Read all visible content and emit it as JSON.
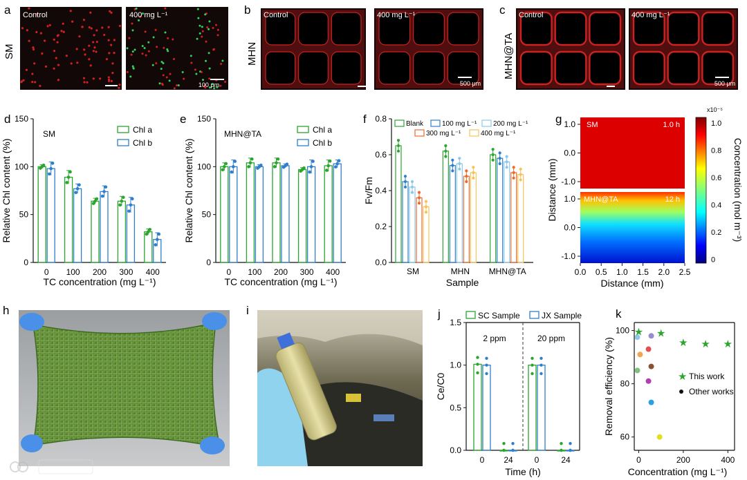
{
  "panels": {
    "a": {
      "letter": "a",
      "row_label": "SM",
      "left": "Control",
      "right": "400 mg L⁻¹",
      "scale": "100 μm"
    },
    "b": {
      "letter": "b",
      "row_label": "MHN",
      "left": "Control",
      "right": "400 mg L⁻¹",
      "scale": "500 μm"
    },
    "c": {
      "letter": "c",
      "row_label": "MHN@TA",
      "left": "Control",
      "right": "400 mg L⁻¹",
      "scale": "500 μm"
    },
    "h": {
      "letter": "h"
    },
    "i": {
      "letter": "i"
    }
  },
  "colors": {
    "green": "#2aa52e",
    "blue": "#2f7fce",
    "light_blue": "#8cc8e8",
    "orange": "#ee6a2c",
    "yellow": "#f5c35a",
    "dark": "#111111",
    "micro_bg": "#120808",
    "micro_red": "#d12020",
    "micro_green": "#2fd35a"
  },
  "chart_data": [
    {
      "id": "d",
      "letter": "d",
      "type": "bar",
      "title": "SM",
      "xlabel": "TC concentration (mg L⁻¹)",
      "ylabel": "Relative Chl content (%)",
      "categories": [
        "0",
        "100",
        "200",
        "300",
        "400"
      ],
      "ylim": [
        0,
        150
      ],
      "yticks": [
        "0",
        "50",
        "100",
        "150"
      ],
      "series": [
        {
          "name": "Chl a",
          "values": [
            100,
            89,
            64,
            64,
            32
          ],
          "errors": [
            2,
            7,
            3,
            5,
            3
          ]
        },
        {
          "name": "Chl b",
          "values": [
            98,
            77,
            74,
            60,
            24
          ],
          "errors": [
            7,
            5,
            6,
            8,
            7
          ]
        }
      ]
    },
    {
      "id": "e",
      "letter": "e",
      "type": "bar",
      "title": "MHN@TA",
      "xlabel": "TC concentration (mg L⁻¹)",
      "ylabel": "Relative Chl content (%)",
      "categories": [
        "0",
        "100",
        "200",
        "300",
        "400"
      ],
      "ylim": [
        0,
        150
      ],
      "yticks": [
        "0",
        "50",
        "100",
        "150"
      ],
      "series": [
        {
          "name": "Chl a",
          "values": [
            100,
            104,
            104,
            97,
            101
          ],
          "errors": [
            4,
            5,
            5,
            2,
            6
          ]
        },
        {
          "name": "Chl b",
          "values": [
            100,
            100,
            101,
            100,
            103
          ],
          "errors": [
            7,
            2,
            2,
            7,
            4
          ]
        }
      ]
    },
    {
      "id": "f",
      "letter": "f",
      "type": "bar",
      "xlabel": "Sample",
      "ylabel": "Fv/Fm",
      "categories": [
        "SM",
        "MHN",
        "MHN@TA"
      ],
      "ylim": [
        0,
        0.8
      ],
      "yticks": [
        "0.0",
        "0.2",
        "0.4",
        "0.6",
        "0.8"
      ],
      "series": [
        {
          "name": "Blank",
          "values": [
            0.65,
            0.62,
            0.6
          ]
        },
        {
          "name": "100 mg L⁻¹",
          "values": [
            0.45,
            0.54,
            0.58
          ]
        },
        {
          "name": "200 mg L⁻¹",
          "values": [
            0.42,
            0.55,
            0.56
          ]
        },
        {
          "name": "300 mg L⁻¹",
          "values": [
            0.36,
            0.48,
            0.5
          ]
        },
        {
          "name": "400 mg L⁻¹",
          "values": [
            0.31,
            0.5,
            0.49
          ]
        }
      ]
    },
    {
      "id": "g",
      "letter": "g",
      "type": "heatmap",
      "xlabel": "Distance (mm)",
      "ylabel": "Distance (mm)",
      "xticks": [
        "0.0",
        "0.5",
        "1.0",
        "1.5",
        "2.0",
        "2.5"
      ],
      "yticks": [
        "1.0",
        "0.0",
        "-1.0"
      ],
      "maps": [
        {
          "label": "SM",
          "time": "1.0 h"
        },
        {
          "label": "MHN@TA",
          "time": "12 h"
        }
      ],
      "colorbar": {
        "label": "Concentration (mol m⁻³)",
        "exponent": "x10⁻⁵",
        "ticks": [
          "1.0",
          "0.8",
          "0.6",
          "0.4",
          "0.2",
          "0"
        ],
        "range": [
          0,
          1.0
        ]
      }
    },
    {
      "id": "j",
      "letter": "j",
      "type": "bar",
      "xlabel": "Time (h)",
      "ylabel": "Ce/C0",
      "groups": [
        "2 ppm",
        "20 ppm"
      ],
      "categories": [
        "0",
        "24",
        "0",
        "24"
      ],
      "ylim": [
        0,
        1.5
      ],
      "yticks": [
        "0.0",
        "0.5",
        "1.0",
        "1.5"
      ],
      "series": [
        {
          "name": "SC Sample",
          "values": [
            1.01,
            0.0,
            1.0,
            0.0
          ]
        },
        {
          "name": "JX Sample",
          "values": [
            1.0,
            0.0,
            1.0,
            0.0
          ]
        }
      ]
    },
    {
      "id": "k",
      "letter": "k",
      "type": "scatter",
      "xlabel": "Concentration (mg L⁻¹)",
      "ylabel": "Removal efficiency (%)",
      "xticks": [
        "0",
        "200",
        "400"
      ],
      "yticks": [
        "60",
        "80",
        "100"
      ],
      "xlim": [
        -20,
        430
      ],
      "ylim": [
        55,
        103
      ],
      "series": [
        {
          "name": "This work",
          "points": [
            [
              0,
              99.5
            ],
            [
              100,
              99
            ],
            [
              200,
              95.5
            ],
            [
              300,
              95
            ],
            [
              400,
              95
            ]
          ]
        },
        {
          "name": "Other works",
          "points": [
            [
              0,
              97.5
            ],
            [
              0,
              91
            ],
            [
              0,
              85
            ],
            [
              50,
              98
            ],
            [
              50,
              93
            ],
            [
              50,
              86.5
            ],
            [
              50,
              81
            ],
            [
              50,
              73
            ],
            [
              100,
              60
            ]
          ]
        }
      ]
    }
  ]
}
